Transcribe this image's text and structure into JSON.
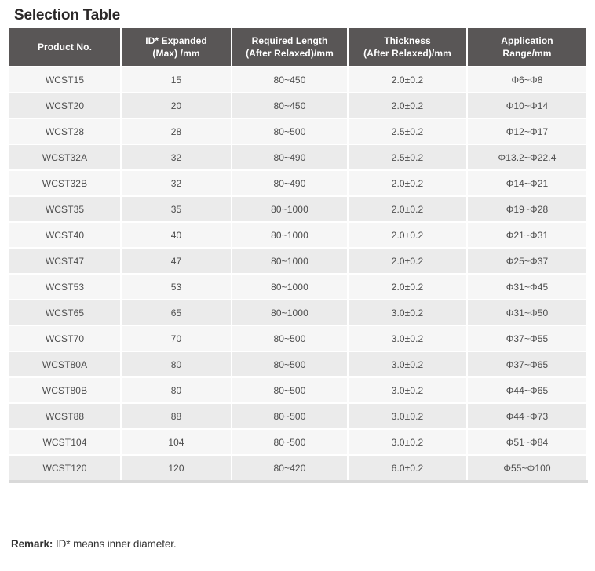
{
  "page": {
    "title": "Selection Table"
  },
  "colors": {
    "header_bg": "#595656",
    "header_text": "#ffffff",
    "row_light": "#f6f6f6",
    "row_dark": "#ebebeb",
    "body_text": "#4d4d4d",
    "bottom_border": "#d9d9d9"
  },
  "table": {
    "columns": [
      {
        "lines": [
          "Product No."
        ]
      },
      {
        "lines": [
          "ID* Expanded",
          "(Max) /mm"
        ]
      },
      {
        "lines": [
          "Required Length",
          "(After Relaxed)/mm"
        ]
      },
      {
        "lines": [
          "Thickness",
          "(After Relaxed)/mm"
        ]
      },
      {
        "lines": [
          "Application",
          "Range/mm"
        ]
      }
    ],
    "rows": [
      [
        "WCST15",
        "15",
        "80~450",
        "2.0±0.2",
        "Φ6~Φ8"
      ],
      [
        "WCST20",
        "20",
        "80~450",
        "2.0±0.2",
        "Φ10~Φ14"
      ],
      [
        "WCST28",
        "28",
        "80~500",
        "2.5±0.2",
        "Φ12~Φ17"
      ],
      [
        "WCST32A",
        "32",
        "80~490",
        "2.5±0.2",
        "Φ13.2~Φ22.4"
      ],
      [
        "WCST32B",
        "32",
        "80~490",
        "2.0±0.2",
        "Φ14~Φ21"
      ],
      [
        "WCST35",
        "35",
        "80~1000",
        "2.0±0.2",
        "Φ19~Φ28"
      ],
      [
        "WCST40",
        "40",
        "80~1000",
        "2.0±0.2",
        "Φ21~Φ31"
      ],
      [
        "WCST47",
        "47",
        "80~1000",
        "2.0±0.2",
        "Φ25~Φ37"
      ],
      [
        "WCST53",
        "53",
        "80~1000",
        "2.0±0.2",
        "Φ31~Φ45"
      ],
      [
        "WCST65",
        "65",
        "80~1000",
        "3.0±0.2",
        "Φ31~Φ50"
      ],
      [
        "WCST70",
        "70",
        "80~500",
        "3.0±0.2",
        "Φ37~Φ55"
      ],
      [
        "WCST80A",
        "80",
        "80~500",
        "3.0±0.2",
        "Φ37~Φ65"
      ],
      [
        "WCST80B",
        "80",
        "80~500",
        "3.0±0.2",
        "Φ44~Φ65"
      ],
      [
        "WCST88",
        "88",
        "80~500",
        "3.0±0.2",
        "Φ44~Φ73"
      ],
      [
        "WCST104",
        "104",
        "80~500",
        "3.0±0.2",
        "Φ51~Φ84"
      ],
      [
        "WCST120",
        "120",
        "80~420",
        "6.0±0.2",
        "Φ55~Φ100"
      ]
    ]
  },
  "remark": {
    "label": "Remark:",
    "text": " ID* means inner diameter."
  }
}
